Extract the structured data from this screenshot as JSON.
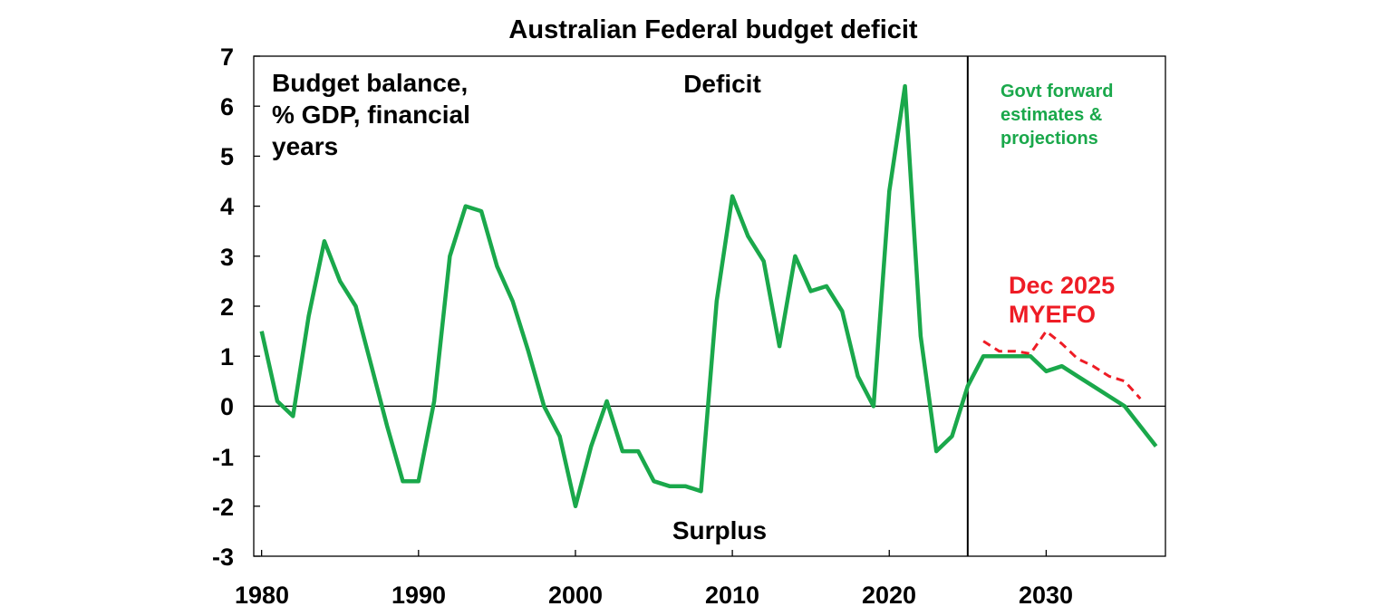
{
  "colors": {
    "actual": "#1aa84b",
    "myefo": "#ee1c25",
    "axis": "#000000"
  },
  "chart_data": {
    "type": "line",
    "title": "Australian Federal budget deficit",
    "xlabel": "",
    "ylabel": "",
    "xlim": [
      1979.5,
      2037.6
    ],
    "ylim": [
      -3,
      7
    ],
    "x_ticks": [
      "1980",
      "1990",
      "2000",
      "2010",
      "2020",
      "2030"
    ],
    "y_ticks": [
      "7",
      "6",
      "5",
      "4",
      "3",
      "2",
      "1",
      "0",
      "-1",
      "-2",
      "-3"
    ],
    "grid": false,
    "legend": "none",
    "projection_start_year": 2025,
    "annotations": {
      "ylabel_lines": [
        "Budget balance,",
        "% GDP, financial",
        "years"
      ],
      "deficit": "Deficit",
      "surplus": "Surplus",
      "forward_lines": [
        "Govt forward",
        "estimates &",
        "projections"
      ],
      "myefo_lines": [
        "Dec 2025",
        "MYEFO"
      ]
    },
    "series": [
      {
        "style": "solid",
        "color": "#1aa84b",
        "x": [
          1980,
          1981,
          1982,
          1983,
          1984,
          1985,
          1986,
          1987,
          1988,
          1989,
          1990,
          1991,
          1992,
          1993,
          1994,
          1995,
          1996,
          1997,
          1998,
          1999,
          2000,
          2001,
          2002,
          2003,
          2004,
          2005,
          2006,
          2007,
          2008,
          2009,
          2010,
          2011,
          2012,
          2013,
          2014,
          2015,
          2016,
          2017,
          2018,
          2019,
          2020,
          2021,
          2022,
          2023,
          2024,
          2025,
          2026,
          2027,
          2028,
          2029,
          2030,
          2031,
          2032,
          2033,
          2034,
          2035,
          2036,
          2037
        ],
        "values": [
          1.5,
          0.1,
          -0.2,
          1.8,
          3.3,
          2.5,
          2.0,
          0.8,
          -0.4,
          -1.5,
          -1.5,
          0.1,
          3.0,
          4.0,
          3.9,
          2.8,
          2.1,
          1.1,
          0.0,
          -0.6,
          -2.0,
          -0.8,
          0.1,
          -0.9,
          -0.9,
          -1.5,
          -1.6,
          -1.6,
          -1.7,
          2.1,
          4.2,
          3.4,
          2.9,
          1.2,
          3.0,
          2.3,
          2.4,
          1.9,
          0.6,
          0.0,
          4.3,
          6.4,
          1.4,
          -0.9,
          -0.6,
          0.4,
          1.0,
          1.0,
          1.0,
          1.0,
          0.7,
          0.8,
          0.6,
          0.4,
          0.2,
          0.0,
          -0.4,
          -0.8
        ]
      },
      {
        "name": "Dec 2025 MYEFO",
        "style": "dashed",
        "color": "#ee1c25",
        "x": [
          2026,
          2027,
          2028,
          2029,
          2030,
          2031,
          2032,
          2033,
          2034,
          2035,
          2036
        ],
        "values": [
          1.3,
          1.1,
          1.1,
          1.05,
          1.5,
          1.25,
          0.95,
          0.8,
          0.6,
          0.5,
          0.15
        ]
      }
    ]
  }
}
